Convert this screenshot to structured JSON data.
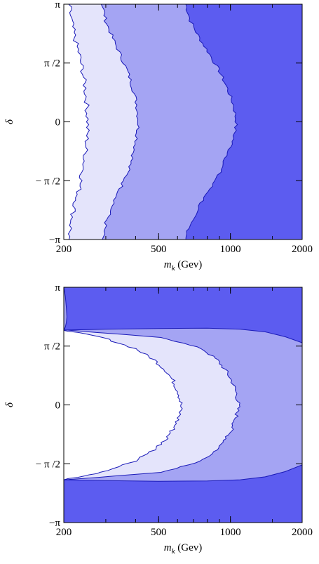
{
  "chart_data": [
    {
      "type": "contour",
      "xlabel_main": "m",
      "xlabel_sub": "k",
      "xlabel_unit": " (Gev)",
      "ylabel": "δ",
      "x_scale": "log",
      "xlim": [
        200,
        2000
      ],
      "ylim": [
        -3.14159,
        3.14159
      ],
      "x_ticks": [
        {
          "value": 200,
          "label": "200"
        },
        {
          "value": 500,
          "label": "500"
        },
        {
          "value": 1000,
          "label": "1000"
        },
        {
          "value": 2000,
          "label": "2000"
        }
      ],
      "y_ticks": [
        {
          "value": 3.14159,
          "label": "π"
        },
        {
          "value": 1.5708,
          "label": "π /2"
        },
        {
          "value": 0,
          "label": "0"
        },
        {
          "value": -1.5708,
          "label": "− π /2"
        },
        {
          "value": -3.14159,
          "label": "−π"
        }
      ],
      "region_colors": [
        "#ffffff",
        "#e4e4fb",
        "#a4a4f3",
        "#5c5cf0"
      ],
      "boundary_color": "#1a1ab8",
      "boundaries": [
        {
          "x": [
            210,
            215,
            222,
            232,
            240,
            246,
            250,
            252,
            250,
            246,
            240,
            232,
            222,
            215,
            210
          ]
        },
        {
          "x": [
            290,
            300,
            320,
            345,
            370,
            390,
            405,
            412,
            405,
            390,
            370,
            345,
            320,
            300,
            290
          ]
        },
        {
          "x": [
            650,
            680,
            740,
            820,
            900,
            970,
            1030,
            1060,
            1030,
            970,
            900,
            820,
            740,
            680,
            650
          ]
        }
      ]
    },
    {
      "type": "contour",
      "xlabel_main": "m",
      "xlabel_sub": "k",
      "xlabel_unit": " (Gev)",
      "ylabel": "δ",
      "x_scale": "log",
      "xlim": [
        200,
        2000
      ],
      "ylim": [
        -3.14159,
        3.14159
      ],
      "x_ticks": [
        {
          "value": 200,
          "label": "200"
        },
        {
          "value": 500,
          "label": "500"
        },
        {
          "value": 1000,
          "label": "1000"
        },
        {
          "value": 2000,
          "label": "2000"
        }
      ],
      "y_ticks": [
        {
          "value": 3.14159,
          "label": "π"
        },
        {
          "value": 1.5708,
          "label": "π /2"
        },
        {
          "value": 0,
          "label": "0"
        },
        {
          "value": -1.5708,
          "label": "− π /2"
        },
        {
          "value": -3.14159,
          "label": "−π"
        }
      ],
      "region_colors": [
        "#ffffff",
        "#e4e4fb",
        "#a4a4f3",
        "#5c5cf0"
      ],
      "boundary_color": "#1a1ab8",
      "inner_boundary": {
        "delta": [
          2.0,
          1.8,
          1.5,
          1.2,
          0.9,
          0.6,
          0.3,
          0.0,
          -0.3,
          -0.6,
          -0.9,
          -1.2,
          -1.5,
          -1.8,
          -2.0
        ],
        "x": [
          200,
          290,
          400,
          480,
          540,
          580,
          610,
          620,
          610,
          580,
          540,
          480,
          400,
          290,
          200
        ]
      },
      "middle_boundary": {
        "delta": [
          2.0,
          1.8,
          1.5,
          1.2,
          0.9,
          0.6,
          0.3,
          0.0,
          -0.3,
          -0.6,
          -0.9,
          -1.2,
          -1.5,
          -1.8,
          -2.0
        ],
        "x": [
          200,
          520,
          760,
          880,
          960,
          1020,
          1060,
          1080,
          1060,
          1020,
          960,
          880,
          760,
          520,
          200
        ]
      },
      "top_band_boundary": {
        "x": [
          200,
          300,
          500,
          800,
          1100,
          1400,
          1700,
          2000
        ],
        "delta": [
          2.0,
          2.02,
          2.04,
          2.05,
          2.02,
          1.95,
          1.82,
          1.66
        ]
      },
      "bottom_band_boundary": {
        "x": [
          200,
          300,
          500,
          800,
          1100,
          1400,
          1700,
          2000
        ],
        "delta": [
          -2.0,
          -2.02,
          -2.04,
          -2.03,
          -2.0,
          -1.92,
          -1.78,
          -1.6
        ]
      },
      "left_blob": {
        "x": [
          200,
          203,
          205,
          206,
          205,
          203,
          200
        ],
        "delta": [
          3.14159,
          2.9,
          2.6,
          2.35,
          2.2,
          2.08,
          2.0
        ]
      }
    }
  ]
}
